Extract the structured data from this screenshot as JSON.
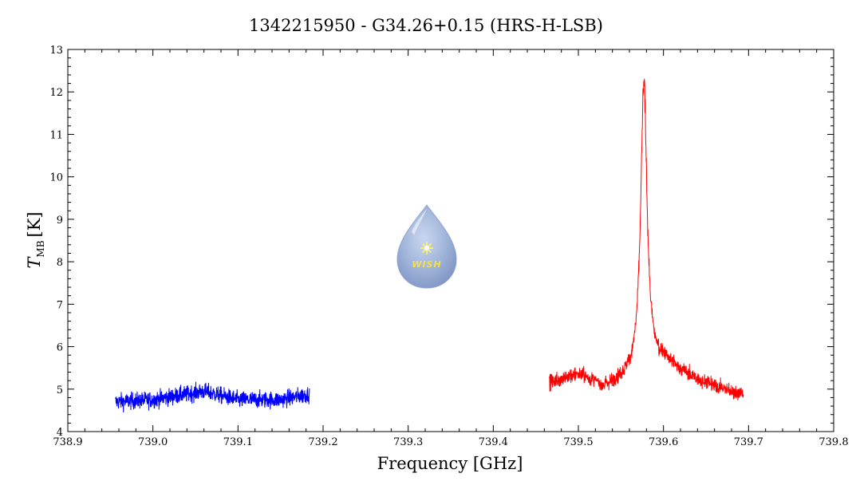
{
  "chart_data": {
    "type": "line",
    "title": "1342215950 - G34.26+0.15 (HRS-H-LSB)",
    "xlabel": "Frequency [GHz]",
    "ylabel_main": "T",
    "ylabel_sub": "MB",
    "ylabel_unit": "[K]",
    "xlim": [
      738.9,
      739.8
    ],
    "ylim": [
      4,
      13
    ],
    "x_ticks": [
      "738.9",
      "739.0",
      "739.1",
      "739.2",
      "739.3",
      "739.4",
      "739.5",
      "739.6",
      "739.7",
      "739.8"
    ],
    "y_ticks": [
      "4",
      "5",
      "6",
      "7",
      "8",
      "9",
      "10",
      "11",
      "12",
      "13"
    ],
    "grid": false,
    "series": [
      {
        "color": "#0000ff",
        "x_range": [
          738.956,
          739.184
        ],
        "baseline": [
          [
            738.956,
            4.7
          ],
          [
            739.0,
            4.75
          ],
          [
            739.06,
            4.95
          ],
          [
            739.1,
            4.75
          ],
          [
            739.15,
            4.75
          ],
          [
            739.184,
            4.88
          ]
        ],
        "noise_amp": 0.28,
        "peak": null
      },
      {
        "color": "#ff0000",
        "x_range": [
          739.466,
          739.694
        ],
        "baseline": [
          [
            739.466,
            5.15
          ],
          [
            739.5,
            5.35
          ],
          [
            739.53,
            5.05
          ],
          [
            739.55,
            5.2
          ],
          [
            739.6,
            5.65
          ],
          [
            739.64,
            5.2
          ],
          [
            739.694,
            4.85
          ]
        ],
        "noise_amp": 0.25,
        "peak": {
          "center": 739.577,
          "value": 12.2,
          "width": 0.0045
        }
      }
    ]
  },
  "logo": {
    "text": "WISH",
    "colors": {
      "drop": "#9fb3d9",
      "drop_dark": "#7f95c4",
      "star": "#f5ec7a"
    }
  },
  "colors": {
    "axes": "#000000",
    "background": "#ffffff"
  }
}
